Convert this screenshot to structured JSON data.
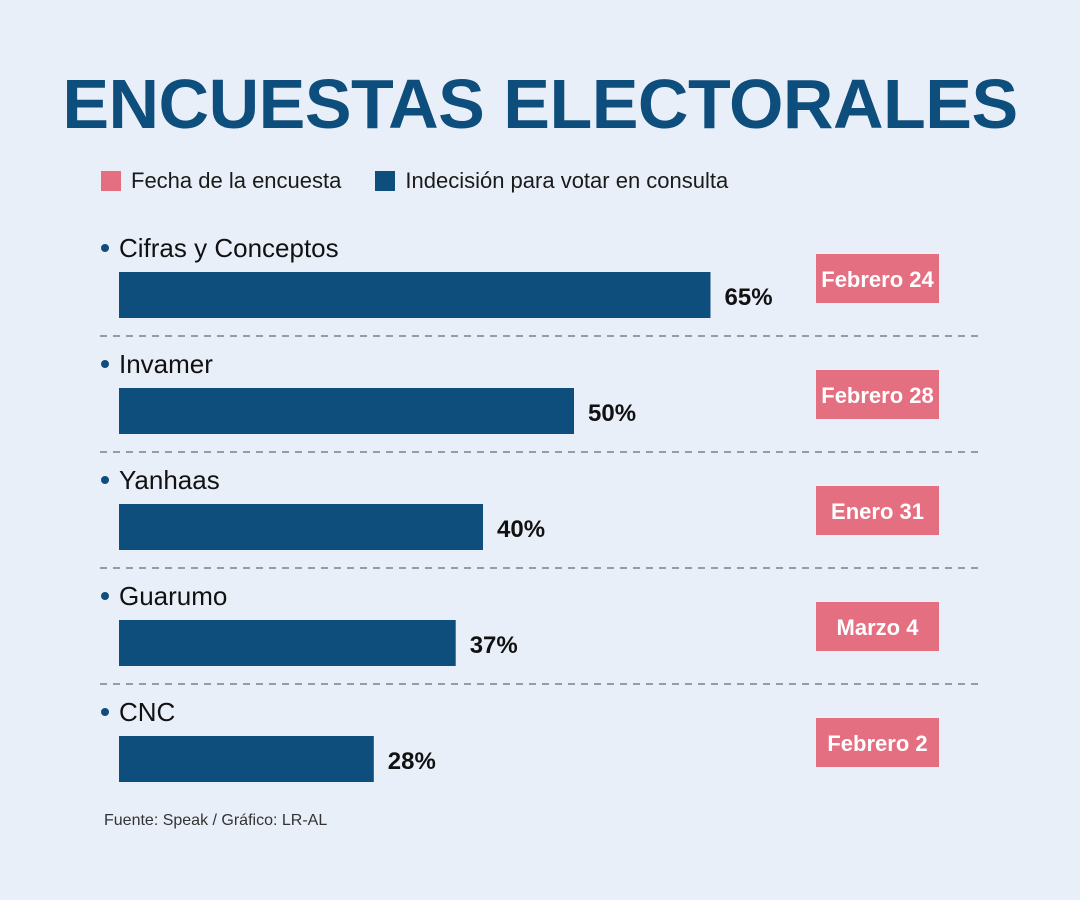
{
  "title": "ENCUESTAS ELECTORALES",
  "legend": [
    {
      "label": "Fecha de la encuesta",
      "color": "#e46f80"
    },
    {
      "label": "Indecisión para votar en consulta",
      "color": "#0d4e7c"
    }
  ],
  "source": "Fuente: Speak / Gráfico: LR-AL",
  "colors": {
    "bar": "#0d4e7c",
    "badge": "#e46f80",
    "title": "#0d4e7c",
    "background": "#e9eff9"
  },
  "chart_data": {
    "type": "bar",
    "orientation": "horizontal",
    "title": "ENCUESTAS ELECTORALES",
    "categories": [
      "Cifras y Conceptos",
      "Invamer",
      "Yanhaas",
      "Guarumo",
      "CNC"
    ],
    "values": [
      65,
      50,
      40,
      37,
      28
    ],
    "labels": [
      "65%",
      "50%",
      "40%",
      "37%",
      "28%"
    ],
    "dates": [
      "Febrero 24",
      "Febrero 28",
      "Enero 31",
      "Marzo 4",
      "Febrero 2"
    ],
    "unit": "%",
    "xlim": [
      0,
      100
    ],
    "series": [
      {
        "name": "Indecisión para votar en consulta",
        "values": [
          65,
          50,
          40,
          37,
          28
        ]
      }
    ]
  }
}
